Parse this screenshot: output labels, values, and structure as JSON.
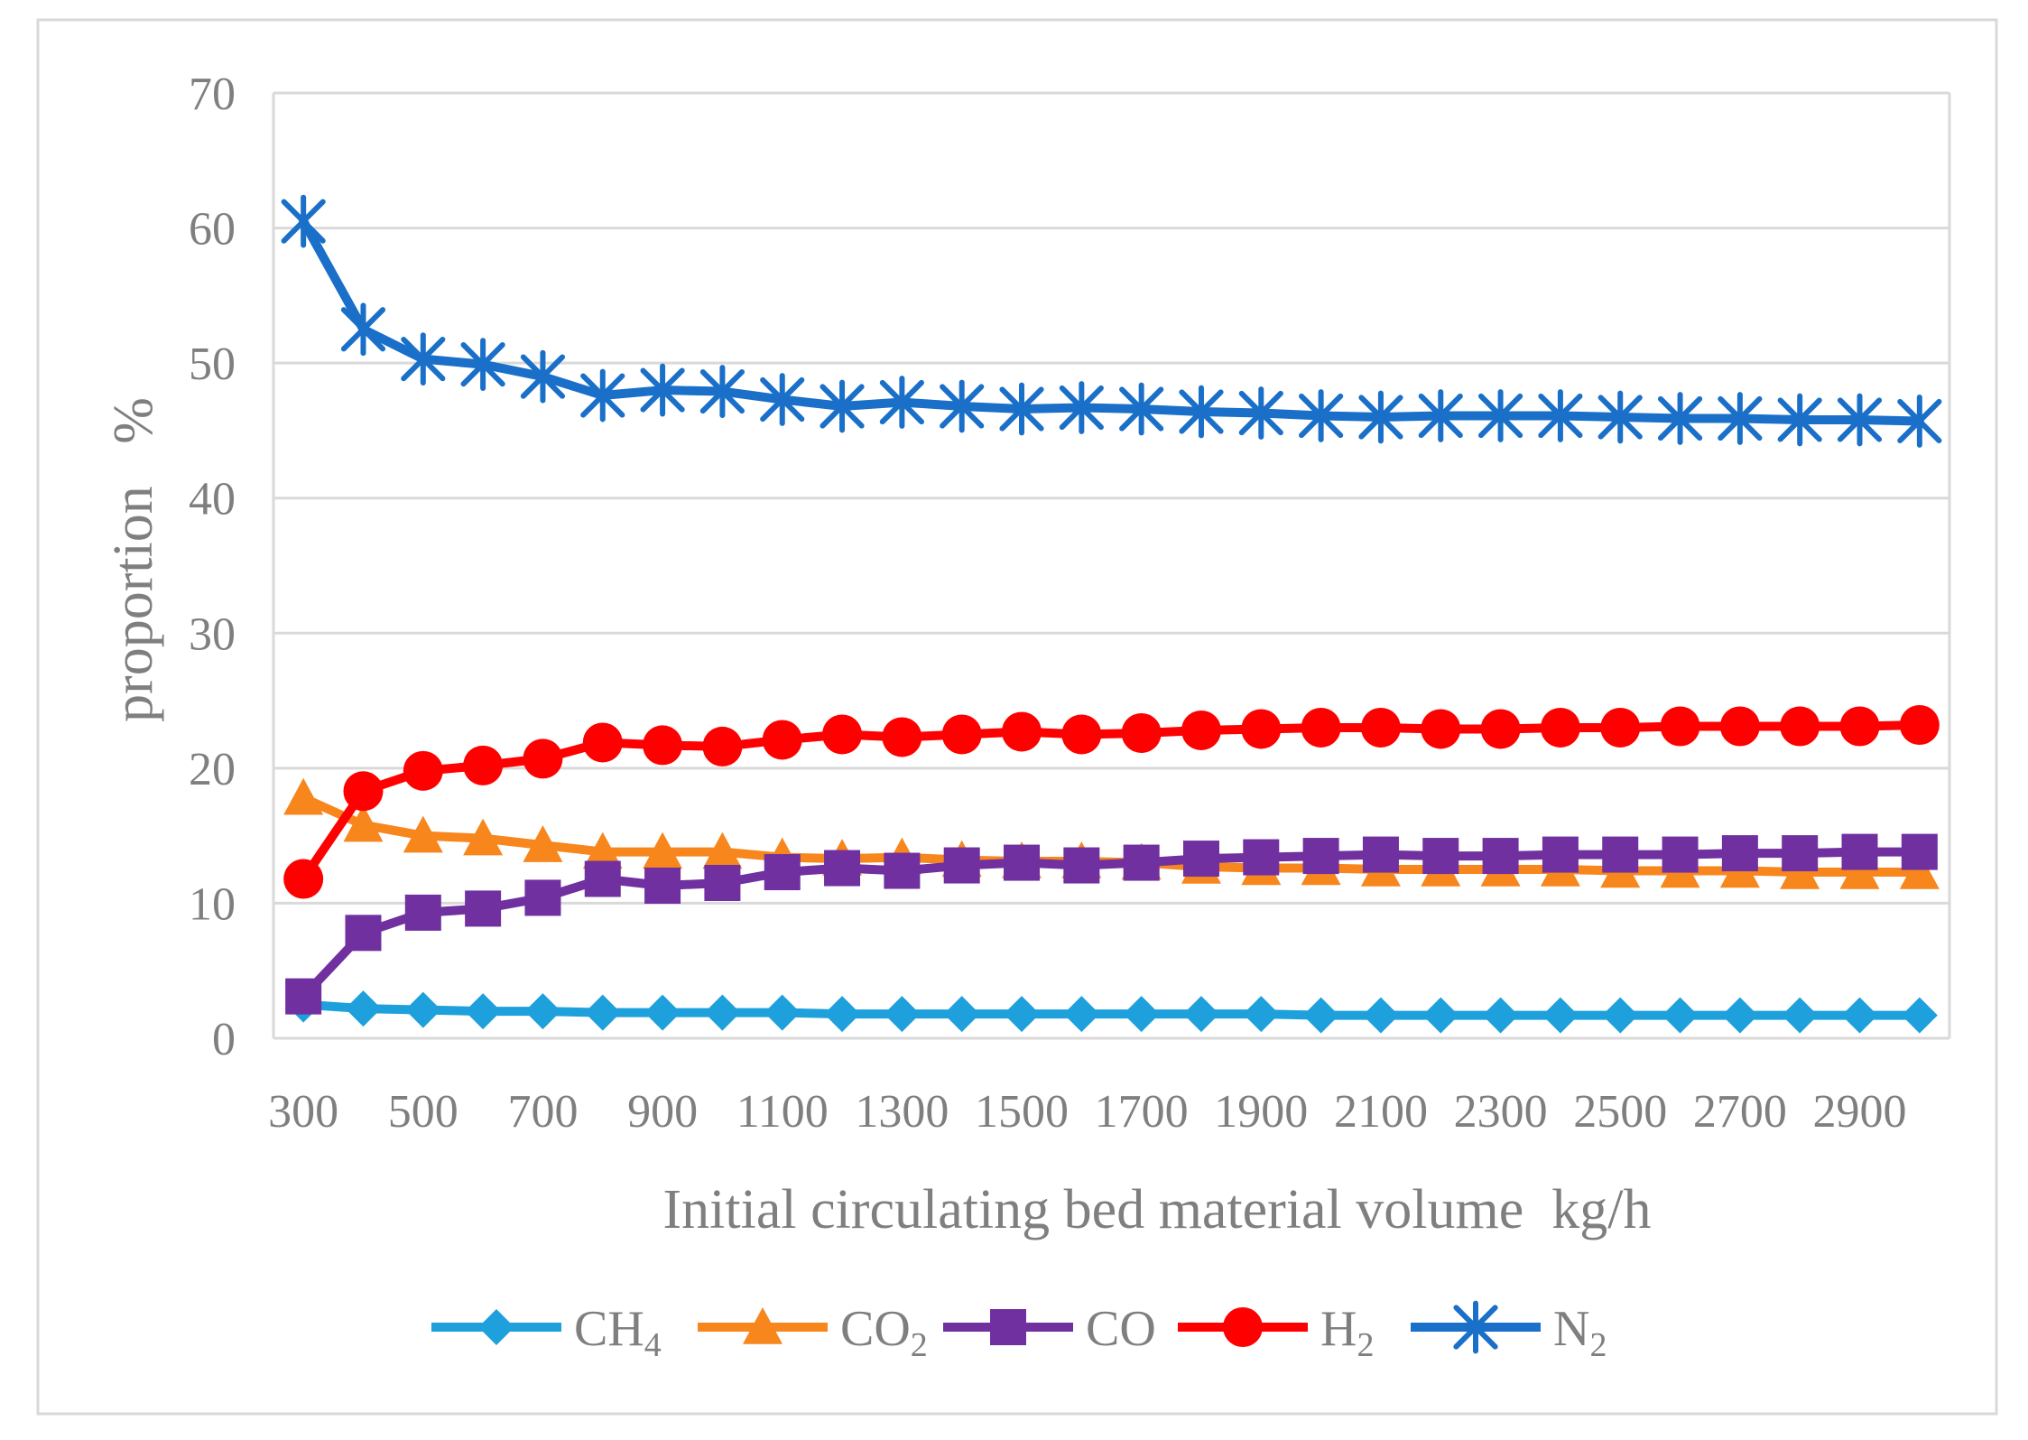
{
  "chart_data": {
    "type": "line",
    "title": "",
    "xlabel": "Initial circulating bed material volume  kg/h",
    "ylabel": "proportion   %",
    "ylim": [
      0,
      70
    ],
    "yticks": [
      0,
      10,
      20,
      30,
      40,
      50,
      60,
      70
    ],
    "grid": true,
    "legend_position": "bottom",
    "categories": [
      300,
      400,
      500,
      600,
      700,
      800,
      900,
      1000,
      1100,
      1200,
      1300,
      1400,
      1500,
      1600,
      1700,
      1800,
      1900,
      2000,
      2100,
      2200,
      2300,
      2400,
      2500,
      2600,
      2700,
      2800,
      2900,
      3000
    ],
    "x_tick_labels": [
      "300",
      "500",
      "700",
      "900",
      "1100",
      "1300",
      "1500",
      "1700",
      "1900",
      "2100",
      "2300",
      "2500",
      "2700",
      "2900"
    ],
    "series": [
      {
        "name": "CH4",
        "label_base": "CH",
        "label_sub": "4",
        "color": "#1ea0dc",
        "marker": "diamond",
        "values": [
          2.5,
          2.2,
          2.1,
          2.0,
          2.0,
          1.9,
          1.9,
          1.9,
          1.9,
          1.8,
          1.8,
          1.8,
          1.8,
          1.8,
          1.8,
          1.8,
          1.8,
          1.7,
          1.7,
          1.7,
          1.7,
          1.7,
          1.7,
          1.7,
          1.7,
          1.7,
          1.7,
          1.7
        ]
      },
      {
        "name": "CO2",
        "label_base": "CO",
        "label_sub": "2",
        "color": "#f7861d",
        "marker": "triangle",
        "values": [
          17.8,
          15.8,
          15.0,
          14.8,
          14.3,
          13.8,
          13.8,
          13.8,
          13.4,
          13.3,
          13.4,
          13.2,
          13.1,
          13.1,
          13.0,
          12.7,
          12.6,
          12.6,
          12.5,
          12.5,
          12.5,
          12.5,
          12.4,
          12.4,
          12.4,
          12.3,
          12.3,
          12.3
        ]
      },
      {
        "name": "CO",
        "label_base": "CO",
        "label_sub": "",
        "color": "#7030a0",
        "marker": "square",
        "values": [
          3.1,
          7.8,
          9.3,
          9.6,
          10.4,
          11.8,
          11.3,
          11.5,
          12.3,
          12.6,
          12.4,
          12.8,
          13.0,
          12.8,
          13.0,
          13.3,
          13.4,
          13.5,
          13.6,
          13.5,
          13.5,
          13.6,
          13.6,
          13.6,
          13.7,
          13.7,
          13.8,
          13.8
        ]
      },
      {
        "name": "H2",
        "label_base": "H",
        "label_sub": "2",
        "color": "#ff0000",
        "marker": "circle",
        "values": [
          11.8,
          18.3,
          19.8,
          20.2,
          20.7,
          21.9,
          21.7,
          21.6,
          22.1,
          22.5,
          22.3,
          22.5,
          22.7,
          22.5,
          22.6,
          22.8,
          22.9,
          23.0,
          23.0,
          22.9,
          22.9,
          23.0,
          23.0,
          23.1,
          23.1,
          23.1,
          23.1,
          23.2
        ]
      },
      {
        "name": "N2",
        "label_base": "N",
        "label_sub": "2",
        "color": "#1a6fc8",
        "marker": "asterisk",
        "values": [
          60.5,
          52.5,
          50.3,
          49.9,
          49.0,
          47.6,
          48.0,
          47.9,
          47.3,
          46.8,
          47.1,
          46.8,
          46.6,
          46.7,
          46.6,
          46.4,
          46.3,
          46.1,
          46.0,
          46.1,
          46.1,
          46.1,
          46.0,
          45.9,
          45.9,
          45.8,
          45.8,
          45.7
        ]
      }
    ]
  }
}
